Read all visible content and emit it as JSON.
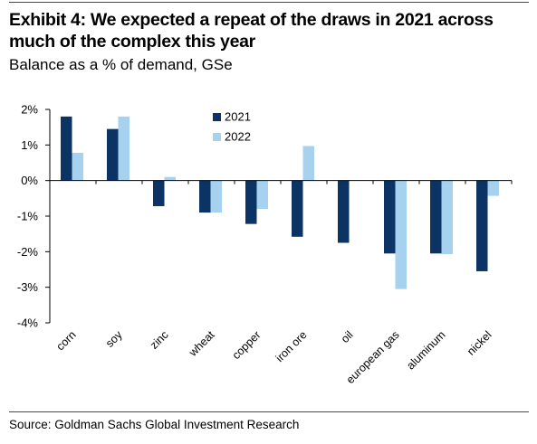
{
  "header": {
    "title": "Exhibit 4: We expected a repeat of the draws in 2021 across much of the complex this year",
    "subtitle": "Balance as a % of demand, GSe"
  },
  "footer": {
    "source": "Source: Goldman Sachs Global Investment Research"
  },
  "colors": {
    "series_2021": "#0b3464",
    "series_2022": "#a7d2ef",
    "axis": "#000000"
  },
  "chart_data": {
    "type": "bar",
    "title": "Exhibit 4: We expected a repeat of the draws in 2021 across much of the complex this year",
    "subtitle": "Balance as a % of demand, GSe",
    "categories": [
      "corn",
      "soy",
      "zinc",
      "wheat",
      "copper",
      "iron ore",
      "oil",
      "european gas",
      "aluminum",
      "nickel"
    ],
    "series": [
      {
        "name": "2021",
        "values": [
          1.8,
          1.45,
          -0.72,
          -0.9,
          -1.22,
          -1.58,
          -1.75,
          -2.05,
          -2.05,
          -2.55
        ]
      },
      {
        "name": "2022",
        "values": [
          0.78,
          1.8,
          0.1,
          -0.9,
          -0.8,
          0.97,
          0.0,
          -3.05,
          -2.07,
          -0.43
        ]
      }
    ],
    "yticks": [
      "2%",
      "1%",
      "0%",
      "-1%",
      "-2%",
      "-3%",
      "-4%"
    ],
    "ytick_values": [
      2,
      1,
      0,
      -1,
      -2,
      -3,
      -4
    ],
    "ylim": [
      -4,
      2
    ],
    "xlabel": "",
    "ylabel": "",
    "grid": false,
    "legend_position": "top-center"
  }
}
